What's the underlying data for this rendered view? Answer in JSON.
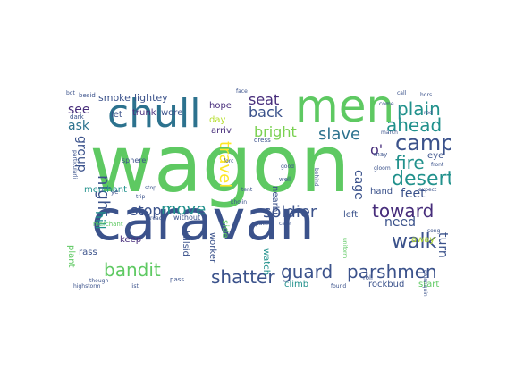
{
  "cloud": {
    "background": "#ffffff",
    "words": [
      {
        "text": "wagon",
        "color": "#5ec962"
      },
      {
        "text": "caravan",
        "color": "#3b528b"
      },
      {
        "text": "men",
        "color": "#5ec962"
      },
      {
        "text": "chull",
        "color": "#2c728e"
      },
      {
        "text": "camp",
        "color": "#3b528b"
      },
      {
        "text": "desert",
        "color": "#21918c"
      },
      {
        "text": "walk",
        "color": "#3b528b"
      },
      {
        "text": "toward",
        "color": "#472d7b"
      },
      {
        "text": "guard",
        "color": "#3b528b"
      },
      {
        "text": "parshmen",
        "color": "#3b528b"
      },
      {
        "text": "shatter",
        "color": "#3b528b"
      },
      {
        "text": "bandit",
        "color": "#5ec962"
      },
      {
        "text": "soldier",
        "color": "#3b528b"
      },
      {
        "text": "slave",
        "color": "#2c728e"
      },
      {
        "text": "plain",
        "color": "#21918c"
      },
      {
        "text": "ahead",
        "color": "#21918c"
      },
      {
        "text": "fire",
        "color": "#21918c"
      },
      {
        "text": "move",
        "color": "#21918c"
      },
      {
        "text": "stop",
        "color": "#3b528b"
      },
      {
        "text": "travel",
        "color": "#fde725"
      },
      {
        "text": "night",
        "color": "#3b528b"
      },
      {
        "text": "back",
        "color": "#3b528b"
      },
      {
        "text": "seat",
        "color": "#472d7b"
      },
      {
        "text": "bright",
        "color": "#7ad151"
      },
      {
        "text": "see",
        "color": "#472d7b"
      },
      {
        "text": "ask",
        "color": "#2c728e"
      },
      {
        "text": "feet",
        "color": "#3b528b"
      },
      {
        "text": "cage",
        "color": "#3b528b"
      },
      {
        "text": "turn",
        "color": "#3b528b"
      },
      {
        "text": "need",
        "color": "#3b528b"
      },
      {
        "text": "hill",
        "color": "#21918c"
      },
      {
        "text": "group",
        "color": "#3b528b"
      },
      {
        "text": "o'",
        "color": "#472d7b"
      },
      {
        "text": "smoke",
        "color": "#3b528b"
      },
      {
        "text": "lightey",
        "color": "#3b528b"
      },
      {
        "text": "hope",
        "color": "#472d7b"
      },
      {
        "text": "day",
        "color": "#b5de2b"
      },
      {
        "text": "let",
        "color": "#3b528b"
      },
      {
        "text": "merchant",
        "color": "#21918c"
      },
      {
        "text": "trunk",
        "color": "#472d7b"
      },
      {
        "text": "wore",
        "color": "#3b528b"
      },
      {
        "text": "arriv",
        "color": "#472d7b"
      },
      {
        "text": "keep",
        "color": "#472d7b"
      },
      {
        "text": "rass",
        "color": "#3b528b"
      },
      {
        "text": "hillsid",
        "color": "#3b528b"
      },
      {
        "text": "worker",
        "color": "#3b528b"
      },
      {
        "text": "watch",
        "color": "#21918c"
      },
      {
        "text": "side",
        "color": "#5ec962"
      },
      {
        "text": "nearbi",
        "color": "#3b528b"
      },
      {
        "text": "climb",
        "color": "#21918c"
      },
      {
        "text": "rockbud",
        "color": "#3b528b"
      },
      {
        "text": "start",
        "color": "#5ec962"
      },
      {
        "text": "away",
        "color": "#b5de2b"
      },
      {
        "text": "hand",
        "color": "#3b528b"
      },
      {
        "text": "left",
        "color": "#3b528b"
      },
      {
        "text": "eye",
        "color": "#3b528b"
      },
      {
        "text": "plant",
        "color": "#5ec962"
      },
      {
        "text": "sphere",
        "color": "#3b528b"
      },
      {
        "text": "without",
        "color": "#3b528b"
      },
      {
        "text": "dress",
        "color": "#3b528b"
      },
      {
        "text": "face",
        "color": "#3b528b"
      },
      {
        "text": "forc",
        "color": "#3b528b"
      },
      {
        "text": "pass",
        "color": "#3b528b"
      },
      {
        "text": "highstorm",
        "color": "#3b528b"
      },
      {
        "text": "list",
        "color": "#3b528b"
      },
      {
        "text": "found",
        "color": "#3b528b"
      },
      {
        "text": "roll",
        "color": "#3b528b"
      },
      {
        "text": "uniform",
        "color": "#5ec962"
      },
      {
        "text": "may",
        "color": "#3b528b"
      },
      {
        "text": "come",
        "color": "#3b528b"
      },
      {
        "text": "march",
        "color": "#3b528b"
      },
      {
        "text": "well",
        "color": "#3b528b"
      },
      {
        "text": "good",
        "color": "#3b528b"
      },
      {
        "text": "behind",
        "color": "#3b528b"
      },
      {
        "text": "reach",
        "color": "#3b528b"
      },
      {
        "text": "besid",
        "color": "#3b528b"
      },
      {
        "text": "dark",
        "color": "#3b528b"
      },
      {
        "text": "ye",
        "color": "#3b528b"
      },
      {
        "text": "trip",
        "color": "#3b528b"
      },
      {
        "text": "call",
        "color": "#3b528b"
      },
      {
        "text": "hors",
        "color": "#3b528b"
      },
      {
        "text": "red",
        "color": "#3b528b"
      },
      {
        "text": "gloom",
        "color": "#3b528b"
      },
      {
        "text": "front",
        "color": "#3b528b"
      },
      {
        "text": "expect",
        "color": "#3b528b"
      },
      {
        "text": "song",
        "color": "#3b528b"
      },
      {
        "text": "particularli",
        "color": "#3b528b"
      },
      {
        "text": "though",
        "color": "#3b528b"
      },
      {
        "text": "care",
        "color": "#3b528b"
      },
      {
        "text": "patch",
        "color": "#3b528b"
      },
      {
        "text": "tent",
        "color": "#3b528b"
      },
      {
        "text": "kholin",
        "color": "#3b528b"
      },
      {
        "text": "palanquin",
        "color": "#3b528b"
      },
      {
        "text": "merchant",
        "color": "#5ec962"
      },
      {
        "text": "stop",
        "color": "#3b528b"
      },
      {
        "text": "bot",
        "color": "#3b528b"
      }
    ]
  }
}
